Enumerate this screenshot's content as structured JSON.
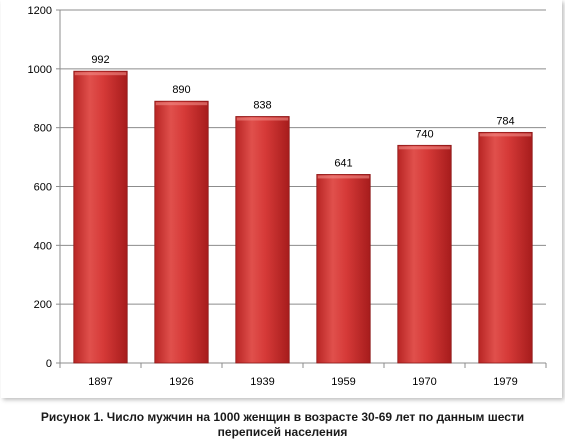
{
  "chart_data": {
    "type": "bar",
    "categories": [
      "1897",
      "1926",
      "1939",
      "1959",
      "1970",
      "1979"
    ],
    "values": [
      992,
      890,
      838,
      641,
      740,
      784
    ],
    "title": "",
    "xlabel": "",
    "ylabel": "",
    "ylim": [
      0,
      1200
    ],
    "yticks": [
      0,
      200,
      400,
      600,
      800,
      1000,
      1200
    ],
    "grid": true,
    "legend": "none",
    "bar_color": "#d63a38"
  },
  "caption": {
    "line1": "Рисунок 1. Число мужчин на 1000 женщин в возрасте 30-69 лет  по данным шести",
    "line2": "переписей населения"
  }
}
